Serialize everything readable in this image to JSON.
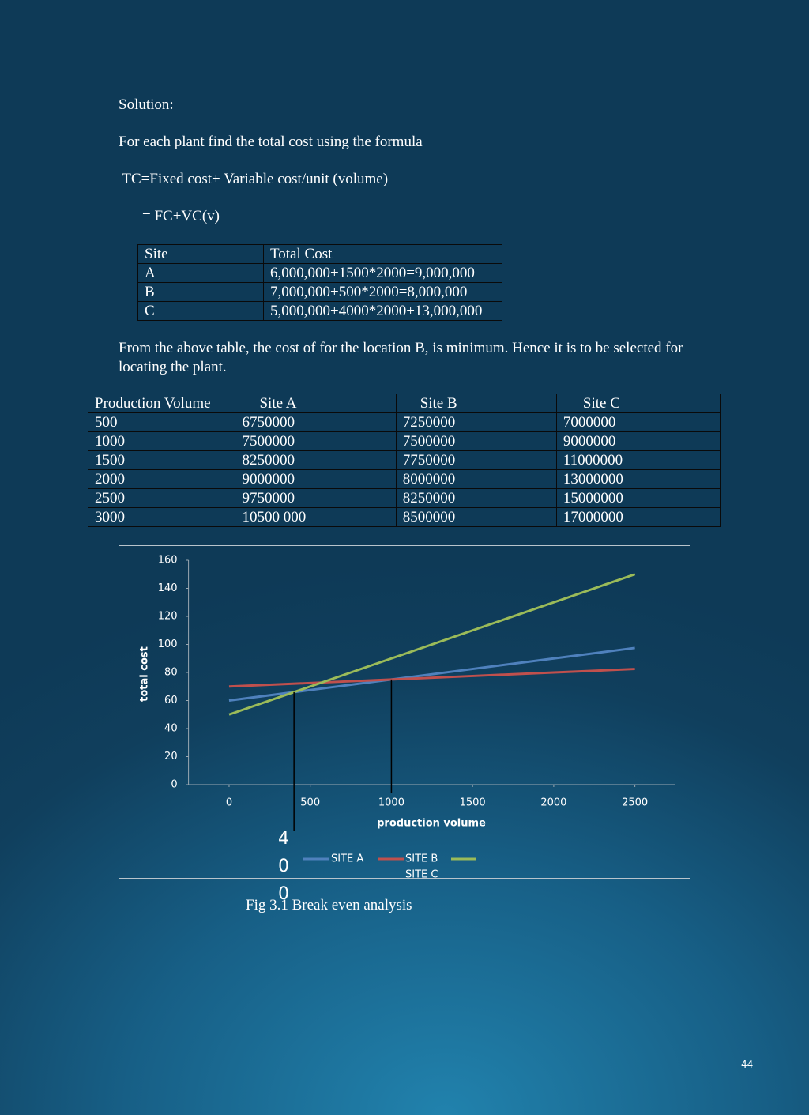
{
  "solution_heading": "Solution:",
  "intro": "For each plant find the total cost using the formula",
  "formula": " TC=Fixed cost+ Variable cost/unit (volume)",
  "formula_short": "= FC+VC(v)",
  "cost_table": {
    "header": [
      "Site",
      "Total Cost"
    ],
    "rows": [
      [
        "A",
        "6,000,000+1500*2000=9,000,000"
      ],
      [
        "B",
        "7,000,000+500*2000=8,000,000"
      ],
      [
        "C",
        "5,000,000+4000*2000+13,000,000"
      ]
    ]
  },
  "conclusion": "From the above table, the cost of for the location B, is minimum. Hence it is to be selected for locating the plant.",
  "volume_table": {
    "header": [
      "Production Volume",
      "Site A",
      "Site B",
      "Site C"
    ],
    "rows": [
      [
        "500",
        "6750000",
        "7250000",
        "7000000"
      ],
      [
        "1000",
        "7500000",
        "7500000",
        "9000000"
      ],
      [
        "1500",
        "8250000",
        "7750000",
        "11000000"
      ],
      [
        "2000",
        "9000000",
        "8000000",
        "13000000"
      ],
      [
        "2500",
        "9750000",
        "8250000",
        "15000000"
      ],
      [
        "3000",
        "10500 000",
        "8500000",
        "17000000"
      ]
    ]
  },
  "chart_data": {
    "type": "line",
    "x_label": "production volume",
    "y_label": "total cost",
    "x": [
      0,
      500,
      1000,
      1500,
      2000,
      2500
    ],
    "xlim": [
      -250,
      2750
    ],
    "xticks": [
      0,
      500,
      1000,
      1500,
      2000,
      2500
    ],
    "ylim": [
      0,
      160
    ],
    "yticks": [
      0,
      20,
      40,
      60,
      80,
      100,
      120,
      140,
      160
    ],
    "series": [
      {
        "name": "SITE A",
        "color": "#4f81bd",
        "values": [
          60,
          67.5,
          75,
          82.5,
          90,
          97.5
        ]
      },
      {
        "name": "SITE B",
        "color": "#c0504d",
        "values": [
          70,
          72.5,
          75,
          77.5,
          80,
          82.5
        ]
      },
      {
        "name": "SITE C",
        "color": "#9bbb59",
        "values": [
          50,
          70,
          90,
          110,
          130,
          150
        ]
      }
    ],
    "annotation": "400",
    "vlines": [
      400,
      1000
    ]
  },
  "caption": "Fig 3.1 Break even analysis",
  "page_number": "44"
}
